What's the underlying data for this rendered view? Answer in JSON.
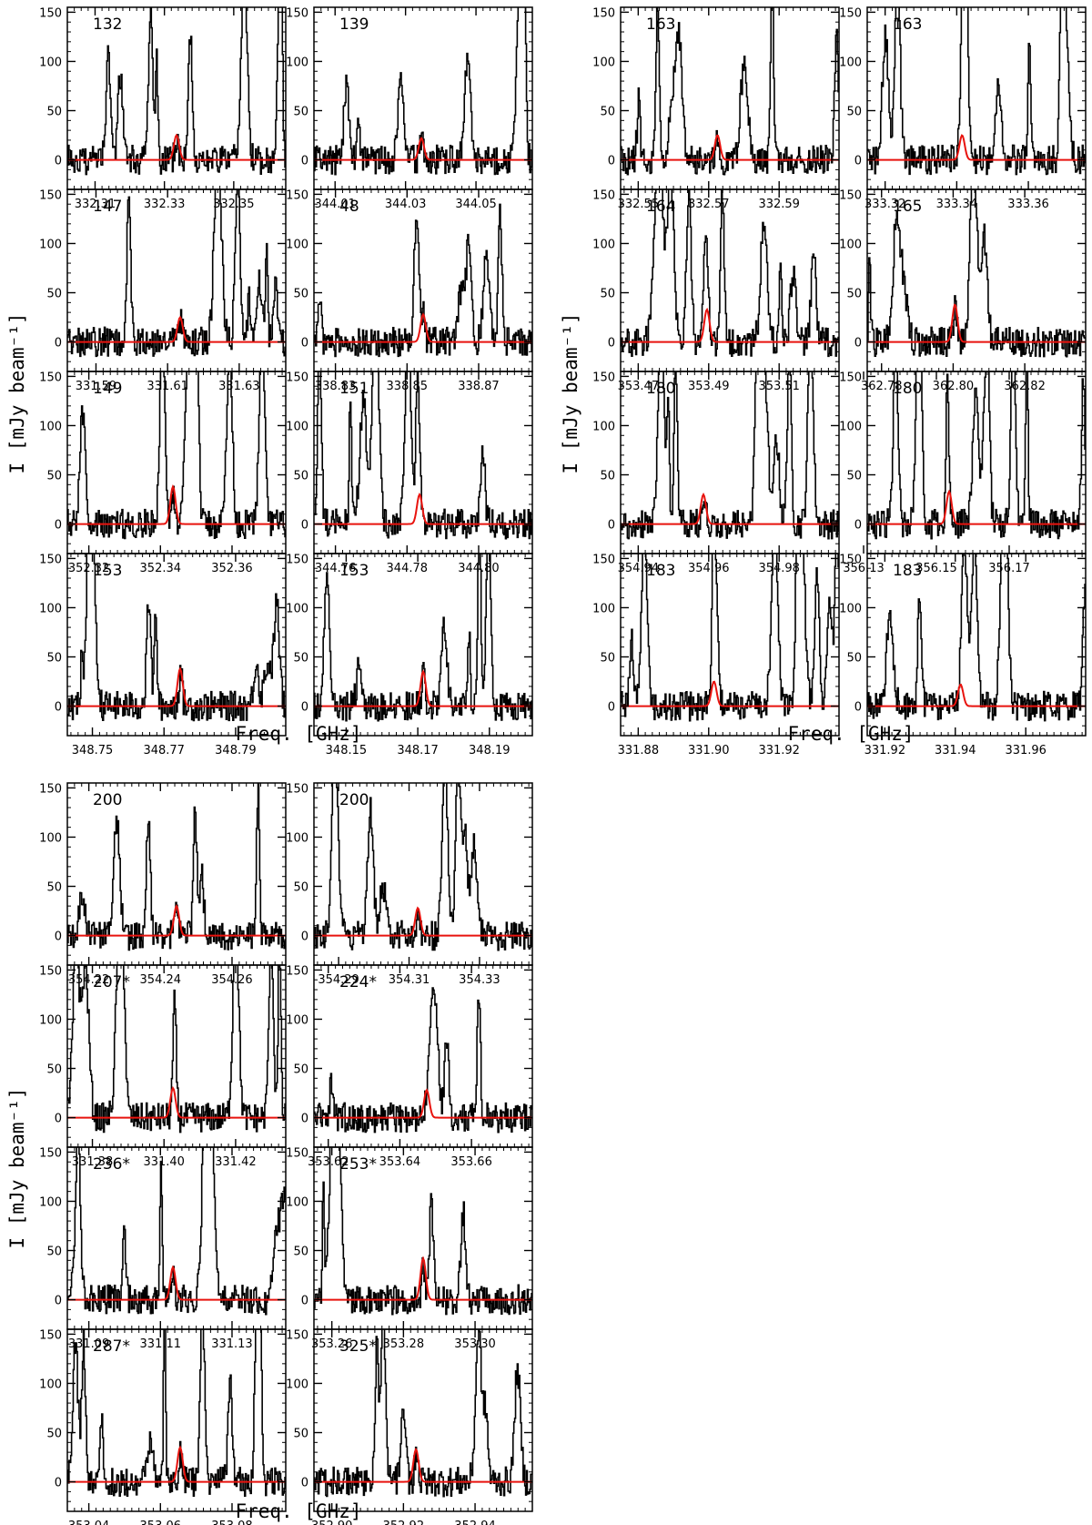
{
  "chart_data": {
    "type": "line",
    "description_units": {
      "y_unit": "mJy beam^-1",
      "x_unit": "GHz"
    },
    "y_axis_label": "I [mJy beam⁻¹]",
    "x_axis_label": "Freq. [GHz]",
    "ylim": [
      -30,
      155
    ],
    "yticks": [
      "0",
      "50",
      "100",
      "150"
    ],
    "colors": {
      "spectrum": "#000000",
      "model": "#e8130e"
    },
    "panels": [
      {
        "label": "132",
        "xlim": [
          332.302,
          332.365
        ],
        "xticks": [
          "332.31",
          "332.33",
          "332.35"
        ],
        "line_center": 332.3335,
        "peak": 25,
        "seed": 3
      },
      {
        "label": "139",
        "xlim": [
          344.004,
          344.066
        ],
        "xticks": [
          "344.01",
          "344.03",
          "344.05"
        ],
        "line_center": 344.0345,
        "peak": 22,
        "seed": 7
      },
      {
        "label": "163",
        "xlim": [
          332.545,
          332.607
        ],
        "xticks": [
          "332.55",
          "332.57",
          "332.59"
        ],
        "line_center": 332.5725,
        "peak": 25,
        "seed": 11
      },
      {
        "label": "163",
        "xlim": [
          333.315,
          333.376
        ],
        "xticks": [
          "333.32",
          "333.34",
          "333.36"
        ],
        "line_center": 333.3415,
        "peak": 25,
        "seed": 13
      },
      {
        "label": "147",
        "xlim": [
          331.582,
          331.643
        ],
        "xticks": [
          "331.59",
          "331.61",
          "331.63"
        ],
        "line_center": 331.6135,
        "peak": 25,
        "seed": 17
      },
      {
        "label": "48",
        "xlim": [
          338.824,
          338.885
        ],
        "xticks": [
          "338.83",
          "338.85",
          "338.87"
        ],
        "line_center": 338.8545,
        "peak": 28,
        "seed": 19
      },
      {
        "label": "164",
        "xlim": [
          353.465,
          353.527
        ],
        "xticks": [
          "353.47",
          "353.49",
          "353.51"
        ],
        "line_center": 353.4895,
        "peak": 33,
        "seed": 23
      },
      {
        "label": "165",
        "xlim": [
          362.776,
          362.837
        ],
        "xticks": [
          "362.78",
          "362.80",
          "362.82"
        ],
        "line_center": 362.8005,
        "peak": 38,
        "seed": 29
      },
      {
        "label": "149",
        "xlim": [
          352.314,
          352.375
        ],
        "xticks": [
          "352.32",
          "352.34",
          "352.36"
        ],
        "line_center": 352.3435,
        "peak": 38,
        "seed": 31
      },
      {
        "label": "151",
        "xlim": [
          344.754,
          344.815
        ],
        "xticks": [
          "344.76",
          "344.78",
          "344.80"
        ],
        "line_center": 344.7835,
        "peak": 30,
        "seed": 37
      },
      {
        "label": "180",
        "xlim": [
          354.935,
          354.997
        ],
        "xticks": [
          "354.94",
          "354.96",
          "354.98"
        ],
        "line_center": 354.9585,
        "peak": 30,
        "seed": 41
      },
      {
        "label": "180",
        "xlim": [
          356.131,
          356.191
        ],
        "xticks": [
          "356.13",
          "356.15",
          "356.17"
        ],
        "line_center": 356.1535,
        "peak": 33,
        "seed": 43
      },
      {
        "label": "153",
        "xlim": [
          348.743,
          348.804
        ],
        "xticks": [
          "348.75",
          "348.77",
          "348.79"
        ],
        "line_center": 348.7745,
        "peak": 38,
        "seed": 47
      },
      {
        "label": "153",
        "xlim": [
          348.141,
          348.202
        ],
        "xticks": [
          "348.15",
          "348.17",
          "348.19"
        ],
        "line_center": 348.1715,
        "peak": 35,
        "seed": 53
      },
      {
        "label": "183",
        "xlim": [
          331.875,
          331.937
        ],
        "xticks": [
          "331.88",
          "331.90",
          "331.92"
        ],
        "line_center": 331.9015,
        "peak": 25,
        "seed": 59
      },
      {
        "label": "183",
        "xlim": [
          331.915,
          331.977
        ],
        "xticks": [
          "331.92",
          "331.94",
          "331.96"
        ],
        "line_center": 331.9415,
        "peak": 22,
        "seed": 61
      },
      {
        "label": "200",
        "xlim": [
          354.214,
          354.275
        ],
        "xticks": [
          "354.22",
          "354.24",
          "354.26"
        ],
        "line_center": 354.2445,
        "peak": 30,
        "seed": 67
      },
      {
        "label": "200",
        "xlim": [
          354.283,
          354.345
        ],
        "xticks": [
          "354.29",
          "354.31",
          "354.33"
        ],
        "line_center": 354.3125,
        "peak": 28,
        "seed": 71
      },
      {
        "label": "207*",
        "xlim": [
          331.373,
          331.434
        ],
        "xticks": [
          "331.38",
          "331.40",
          "331.42"
        ],
        "line_center": 331.4025,
        "peak": 30,
        "seed": 73
      },
      {
        "label": "224*",
        "xlim": [
          353.616,
          353.677
        ],
        "xticks": [
          "353.62",
          "353.64",
          "353.66"
        ],
        "line_center": 353.6475,
        "peak": 28,
        "seed": 79
      },
      {
        "label": "236*",
        "xlim": [
          331.084,
          331.145
        ],
        "xticks": [
          "331.09",
          "331.11",
          "331.13"
        ],
        "line_center": 331.1135,
        "peak": 33,
        "seed": 83
      },
      {
        "label": "253*",
        "xlim": [
          353.255,
          353.316
        ],
        "xticks": [
          "353.26",
          "353.28",
          "353.30"
        ],
        "line_center": 353.2855,
        "peak": 42,
        "seed": 89
      },
      {
        "label": "287*",
        "xlim": [
          353.034,
          353.095
        ],
        "xticks": [
          "353.04",
          "353.06",
          "353.08"
        ],
        "line_center": 353.0655,
        "peak": 35,
        "seed": 97
      },
      {
        "label": "325*",
        "xlim": [
          352.895,
          352.956
        ],
        "xticks": [
          "352.90",
          "352.92",
          "352.94"
        ],
        "line_center": 352.9235,
        "peak": 33,
        "seed": 101
      }
    ]
  }
}
